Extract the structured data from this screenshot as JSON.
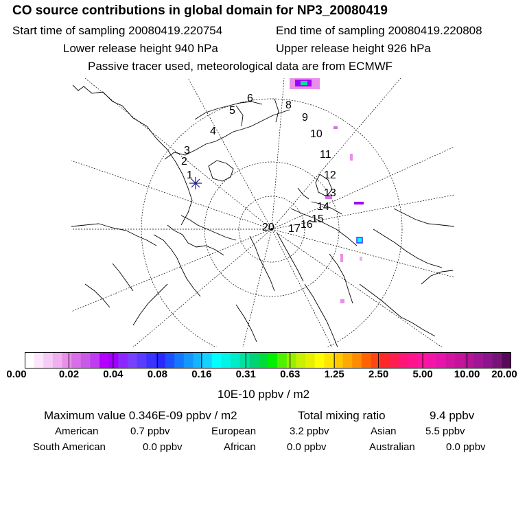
{
  "header": {
    "title": "CO  source contributions in global domain for NP3_20080419",
    "start_label": "Start time of sampling 20080419.220754",
    "end_label": "End time of sampling 20080419.220808",
    "lower_label": "Lower release height  940 hPa",
    "upper_label": "Upper release height  926 hPa",
    "tracer_note": "Passive tracer used, meteorological data are from ECMWF"
  },
  "map": {
    "track_labels": [
      "1",
      "2",
      "3",
      "4",
      "5",
      "6",
      "8",
      "9",
      "10",
      "11",
      "12",
      "13",
      "14",
      "15",
      "16",
      "17",
      "20"
    ],
    "marker": "star-cross",
    "colors": {
      "coast": "#000000",
      "grid": "#000000",
      "marker": "#1a1a80"
    }
  },
  "colorbar": {
    "ticks": [
      "0.00",
      "0.02",
      "0.04",
      "0.08",
      "0.16",
      "0.31",
      "0.63",
      "1.25",
      "2.50",
      "5.00",
      "10.00",
      "20.00"
    ],
    "colors": [
      "#ffffff",
      "#fbe6fb",
      "#f5ccf5",
      "#efb0ef",
      "#e98fe9",
      "#d96ee9",
      "#c85ae8",
      "#c03cf0",
      "#b400ff",
      "#a000ff",
      "#8c28ff",
      "#7840ff",
      "#5a3cff",
      "#3c32ff",
      "#2828ff",
      "#1e50ff",
      "#1478ff",
      "#1496ff",
      "#14b4ff",
      "#14d2ff",
      "#00ffff",
      "#00f5e6",
      "#00ebc8",
      "#00e1a0",
      "#00d278",
      "#00dc3c",
      "#00f000",
      "#50f000",
      "#96f000",
      "#c8f000",
      "#e6f000",
      "#ffff00",
      "#ffe600",
      "#ffc800",
      "#ffaa00",
      "#ff8c00",
      "#ff6400",
      "#ff4614",
      "#ff2828",
      "#ff1e50",
      "#ff1478",
      "#ff148c",
      "#ff14a0",
      "#f514aa",
      "#e614aa",
      "#d214a0",
      "#c3149b",
      "#b41496",
      "#a01496",
      "#8c148c",
      "#781478",
      "#5a0a5a"
    ],
    "units_label": "10E-10 ppbv / m2"
  },
  "stats": {
    "max_label": "Maximum value  0.346E-09 ppbv / m2",
    "total_label": "Total mixing ratio",
    "total_value": "9.4 ppbv"
  },
  "regions": [
    {
      "name": "American",
      "value": "0.7 ppbv"
    },
    {
      "name": "European",
      "value": "3.2 ppbv"
    },
    {
      "name": "Asian",
      "value": "5.5 ppbv"
    },
    {
      "name": "South American",
      "value": "0.0 ppbv"
    },
    {
      "name": "African",
      "value": "0.0 ppbv"
    },
    {
      "name": "Australian",
      "value": "0.0 ppbv"
    }
  ]
}
